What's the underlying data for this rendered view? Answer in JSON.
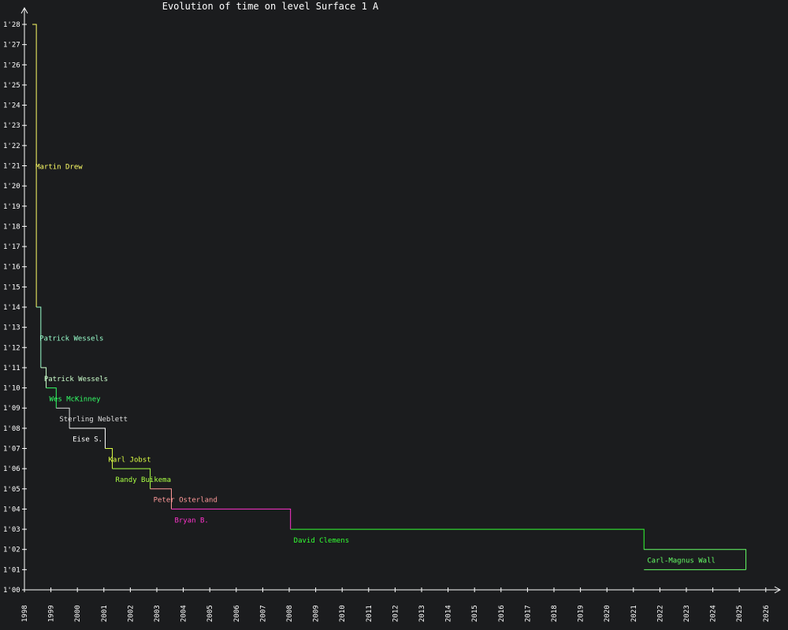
{
  "chart_data": {
    "type": "line",
    "title": "Evolution of time on level Surface 1 A",
    "xlabel": "",
    "ylabel": "",
    "xlim": [
      1998,
      2026.5
    ],
    "ylim": [
      60,
      88
    ],
    "x_ticks": [
      "1998",
      "1999",
      "2000",
      "2001",
      "2002",
      "2003",
      "2004",
      "2005",
      "2006",
      "2007",
      "2008",
      "2009",
      "2010",
      "2011",
      "2012",
      "2013",
      "2014",
      "2015",
      "2016",
      "2017",
      "2018",
      "2019",
      "2020",
      "2021",
      "2022",
      "2023",
      "2024",
      "2025",
      "2026"
    ],
    "y_ticks": [
      "1'00",
      "1'01",
      "1'02",
      "1'03",
      "1'04",
      "1'05",
      "1'06",
      "1'07",
      "1'08",
      "1'09",
      "1'10",
      "1'11",
      "1'12",
      "1'13",
      "1'14",
      "1'15",
      "1'16",
      "1'17",
      "1'18",
      "1'19",
      "1'20",
      "1'21",
      "1'22",
      "1'23",
      "1'24",
      "1'25",
      "1'26",
      "1'27",
      "1'28"
    ],
    "end_year": 2025.25,
    "records": [
      {
        "name": "Martin Drew",
        "year": 1998.3,
        "time": 88,
        "color": "#ffff66"
      },
      {
        "name": "Patrick Wessels",
        "year": 1998.45,
        "time": 74,
        "color": "#99ffcc"
      },
      {
        "name": "Patrick Wessels",
        "year": 1998.62,
        "time": 71,
        "color": "#ccffcc"
      },
      {
        "name": "Wes McKinney",
        "year": 1998.82,
        "time": 70,
        "color": "#33ff66"
      },
      {
        "name": "Sterling Neblett",
        "year": 1999.2,
        "time": 69,
        "color": "#dddddd"
      },
      {
        "name": "Eise S.",
        "year": 1999.7,
        "time": 68,
        "color": "#ffffff"
      },
      {
        "name": "Karl Jobst",
        "year": 2001.05,
        "time": 67,
        "color": "#ddff44"
      },
      {
        "name": "Randy Buikema",
        "year": 2001.32,
        "time": 66,
        "color": "#aaff44"
      },
      {
        "name": "Peter Osterland",
        "year": 2002.75,
        "time": 65,
        "color": "#ff9999"
      },
      {
        "name": "Bryan B.",
        "year": 2003.55,
        "time": 64,
        "color": "#ff33cc"
      },
      {
        "name": "David Clemens",
        "year": 2008.05,
        "time": 63,
        "color": "#33ff33"
      },
      {
        "name": "Carl-Magnus Wall",
        "year": 2021.4,
        "time": 62,
        "color": "#66ff66"
      }
    ],
    "final_time": 61,
    "colors": {
      "background": "#1b1c1e",
      "axis": "#ffffff",
      "text": "#ffffff"
    }
  }
}
